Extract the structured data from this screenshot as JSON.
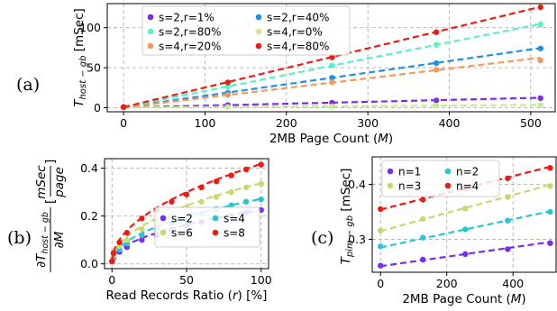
{
  "chart_data": [
    {
      "panel": "(a)",
      "type": "line",
      "xlabel": "2MB Page Count (",
      "xlabel_var": "M",
      "xlabel_end": ")",
      "ylabel_main": "T",
      "ylabel_sub": "host − gb",
      "ylabel_unit": " [mSec]",
      "xlim": [
        -20,
        530
      ],
      "ylim": [
        -5,
        130
      ],
      "xticks": [
        0,
        100,
        200,
        300,
        400,
        500
      ],
      "yticks": [
        0,
        50,
        100
      ],
      "legend": "top-left",
      "grid": true,
      "x": [
        0,
        128,
        256,
        384,
        512
      ],
      "series": [
        {
          "name": "s=2,r=1%",
          "color": "#7b2cf0",
          "values": [
            0.5,
            3.4,
            6.3,
            9.2,
            12.0
          ],
          "fit": [
            0.3,
            12.5
          ]
        },
        {
          "name": "s=2,r=40%",
          "color": "#1f8fe8",
          "values": [
            0.7,
            18.6,
            37.4,
            55.7,
            74.0
          ],
          "fit": [
            0.5,
            74.5
          ]
        },
        {
          "name": "s=2,r=80%",
          "color": "#58f0c8",
          "values": [
            0.8,
            26.3,
            52.6,
            78.6,
            104.0
          ],
          "fit": [
            0.6,
            104.5
          ]
        },
        {
          "name": "s=4,r=0%",
          "color": "#c8e89a",
          "values": [
            0.3,
            1.0,
            1.8,
            2.6,
            3.5
          ],
          "fit": [
            0.2,
            3.6
          ]
        },
        {
          "name": "s=4,r=20%",
          "color": "#f59a5e",
          "values": [
            0.6,
            16.0,
            31.8,
            47.5,
            59.0
          ],
          "fit": [
            0.4,
            62.5
          ]
        },
        {
          "name": "s=4,r=80%",
          "color": "#ef1a12",
          "values": [
            1.0,
            31.6,
            63.0,
            94.3,
            125.5
          ],
          "fit": [
            0.8,
            126.0
          ]
        }
      ]
    },
    {
      "panel": "(b)",
      "type": "line",
      "xlabel": "Read Records Ratio (",
      "xlabel_var": "r",
      "xlabel_end": ") [%]",
      "ylabel_num": "∂T",
      "ylabel_num_sub": "host − gb",
      "ylabel_den": "∂M",
      "ylabel_unit_num": "mSec",
      "ylabel_unit_den": "page",
      "xlim": [
        -5,
        105
      ],
      "ylim": [
        -0.02,
        0.44
      ],
      "xticks": [
        0,
        50,
        100
      ],
      "yticks": [
        0.0,
        0.2,
        0.4
      ],
      "ytick_labels": [
        "0.0",
        "0.2",
        "0.4"
      ],
      "legend": "bottom-right",
      "grid": true,
      "x": [
        0,
        1,
        5,
        10,
        20,
        30,
        40,
        50,
        60,
        70,
        80,
        90,
        100
      ],
      "series": [
        {
          "name": "s=2",
          "color": "#7b2cf0",
          "values": [
            0.01,
            0.025,
            0.05,
            0.07,
            0.1,
            0.12,
            0.14,
            0.16,
            0.175,
            0.19,
            0.2,
            0.215,
            0.225
          ],
          "scale": 0.226
        },
        {
          "name": "s=4",
          "color": "#26c6d6",
          "values": [
            0.01,
            0.03,
            0.06,
            0.085,
            0.12,
            0.145,
            0.17,
            0.19,
            0.21,
            0.23,
            0.245,
            0.26,
            0.27
          ],
          "scale": 0.272
        },
        {
          "name": "s=6",
          "color": "#c8d870",
          "values": [
            0.01,
            0.035,
            0.075,
            0.1,
            0.145,
            0.18,
            0.205,
            0.235,
            0.26,
            0.28,
            0.3,
            0.32,
            0.335
          ],
          "scale": 0.338
        },
        {
          "name": "s=8",
          "color": "#ef1a12",
          "values": [
            0.01,
            0.045,
            0.09,
            0.13,
            0.19,
            0.225,
            0.26,
            0.29,
            0.32,
            0.345,
            0.37,
            0.395,
            0.415
          ],
          "scale": 0.418
        }
      ]
    },
    {
      "panel": "(c)",
      "type": "line",
      "xlabel": "2MB Page Count (",
      "xlabel_var": "M",
      "xlabel_end": ")",
      "ylabel_main": "T",
      "ylabel_sub": "pim − gb",
      "ylabel_unit": " [mSec]",
      "xlim": [
        -25,
        530
      ],
      "ylim": [
        0.24,
        0.45
      ],
      "xticks": [
        0,
        200,
        400
      ],
      "yticks": [
        0.3,
        0.4
      ],
      "ytick_labels": [
        "0.3",
        "0.4"
      ],
      "legend": "top-left",
      "grid": true,
      "x": [
        0,
        128,
        256,
        384,
        512
      ],
      "series": [
        {
          "name": "n=1",
          "color": "#7b2cf0",
          "values": [
            0.252,
            0.263,
            0.273,
            0.282,
            0.293
          ],
          "fit": [
            0.251,
            0.295
          ]
        },
        {
          "name": "n=2",
          "color": "#26c6d6",
          "values": [
            0.287,
            0.303,
            0.318,
            0.334,
            0.35
          ],
          "fit": [
            0.285,
            0.351
          ]
        },
        {
          "name": "n=3",
          "color": "#c8d870",
          "values": [
            0.316,
            0.337,
            0.356,
            0.377,
            0.397
          ],
          "fit": [
            0.315,
            0.399
          ]
        },
        {
          "name": "n=4",
          "color": "#ef1a12",
          "values": [
            0.355,
            0.372,
            0.392,
            0.411,
            0.43
          ],
          "fit": [
            0.354,
            0.432
          ]
        }
      ]
    }
  ]
}
